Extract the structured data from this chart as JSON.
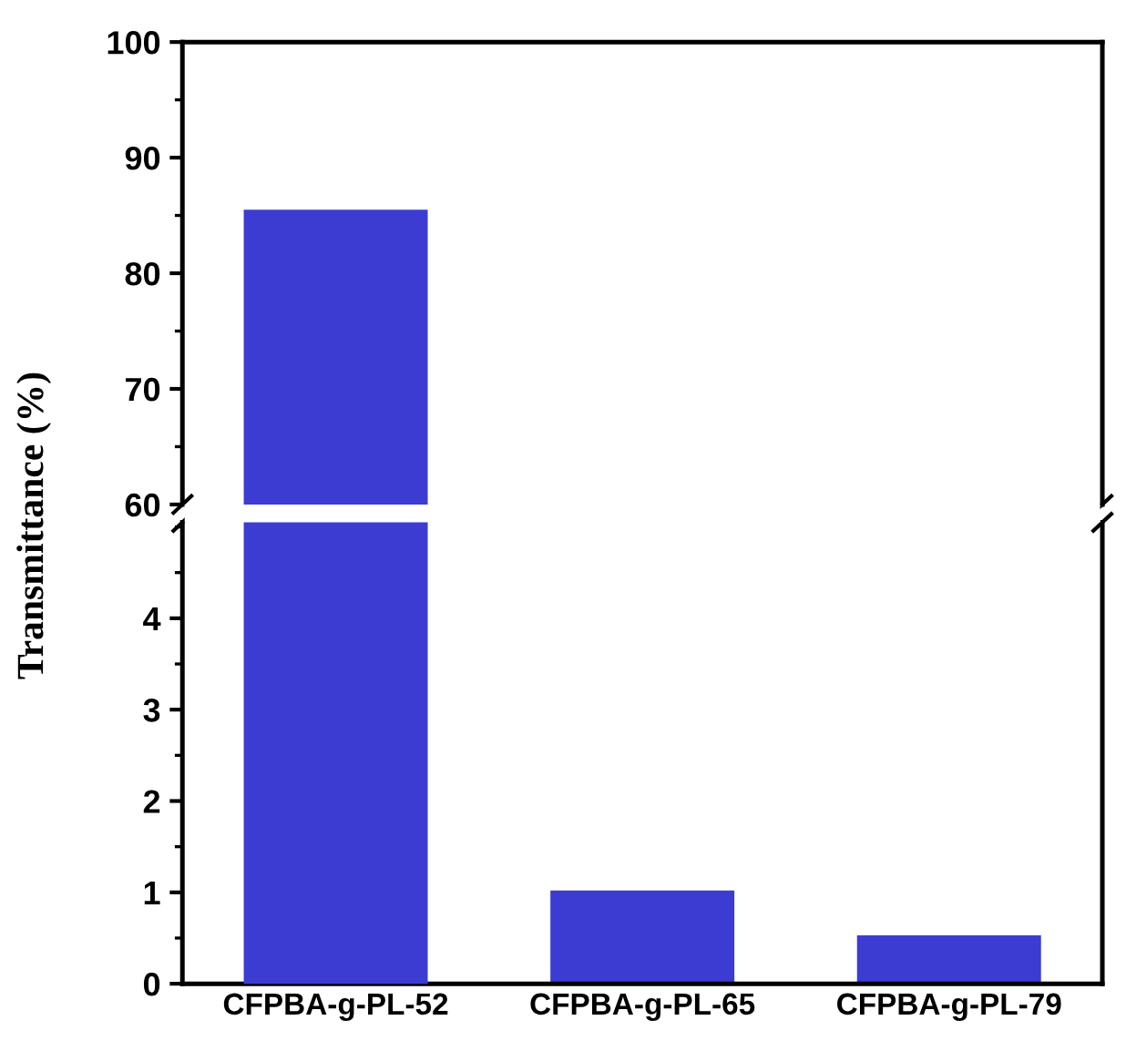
{
  "chart_data": [
    {
      "type": "bar",
      "ylabel": "Transmittance (%)",
      "values": [
        85.5,
        null,
        null
      ],
      "color": "#3c3cd2",
      "ylim": [
        60,
        100
      ],
      "yticks": [
        60,
        70,
        80,
        90,
        100
      ],
      "tick_labels": "y",
      "grid": false,
      "legend": false
    },
    {
      "type": "bar",
      "categories": [
        "CFPBA-g-PL-52",
        "CFPBA-g-PL-65",
        "CFPBA-g-PL-79"
      ],
      "values": [
        null,
        1.02,
        0.53
      ],
      "color": "#3c3cd2",
      "ylim": [
        0,
        5.05
      ],
      "yticks": [
        0,
        1,
        2,
        3,
        4
      ],
      "grid": false,
      "legend": false
    }
  ]
}
